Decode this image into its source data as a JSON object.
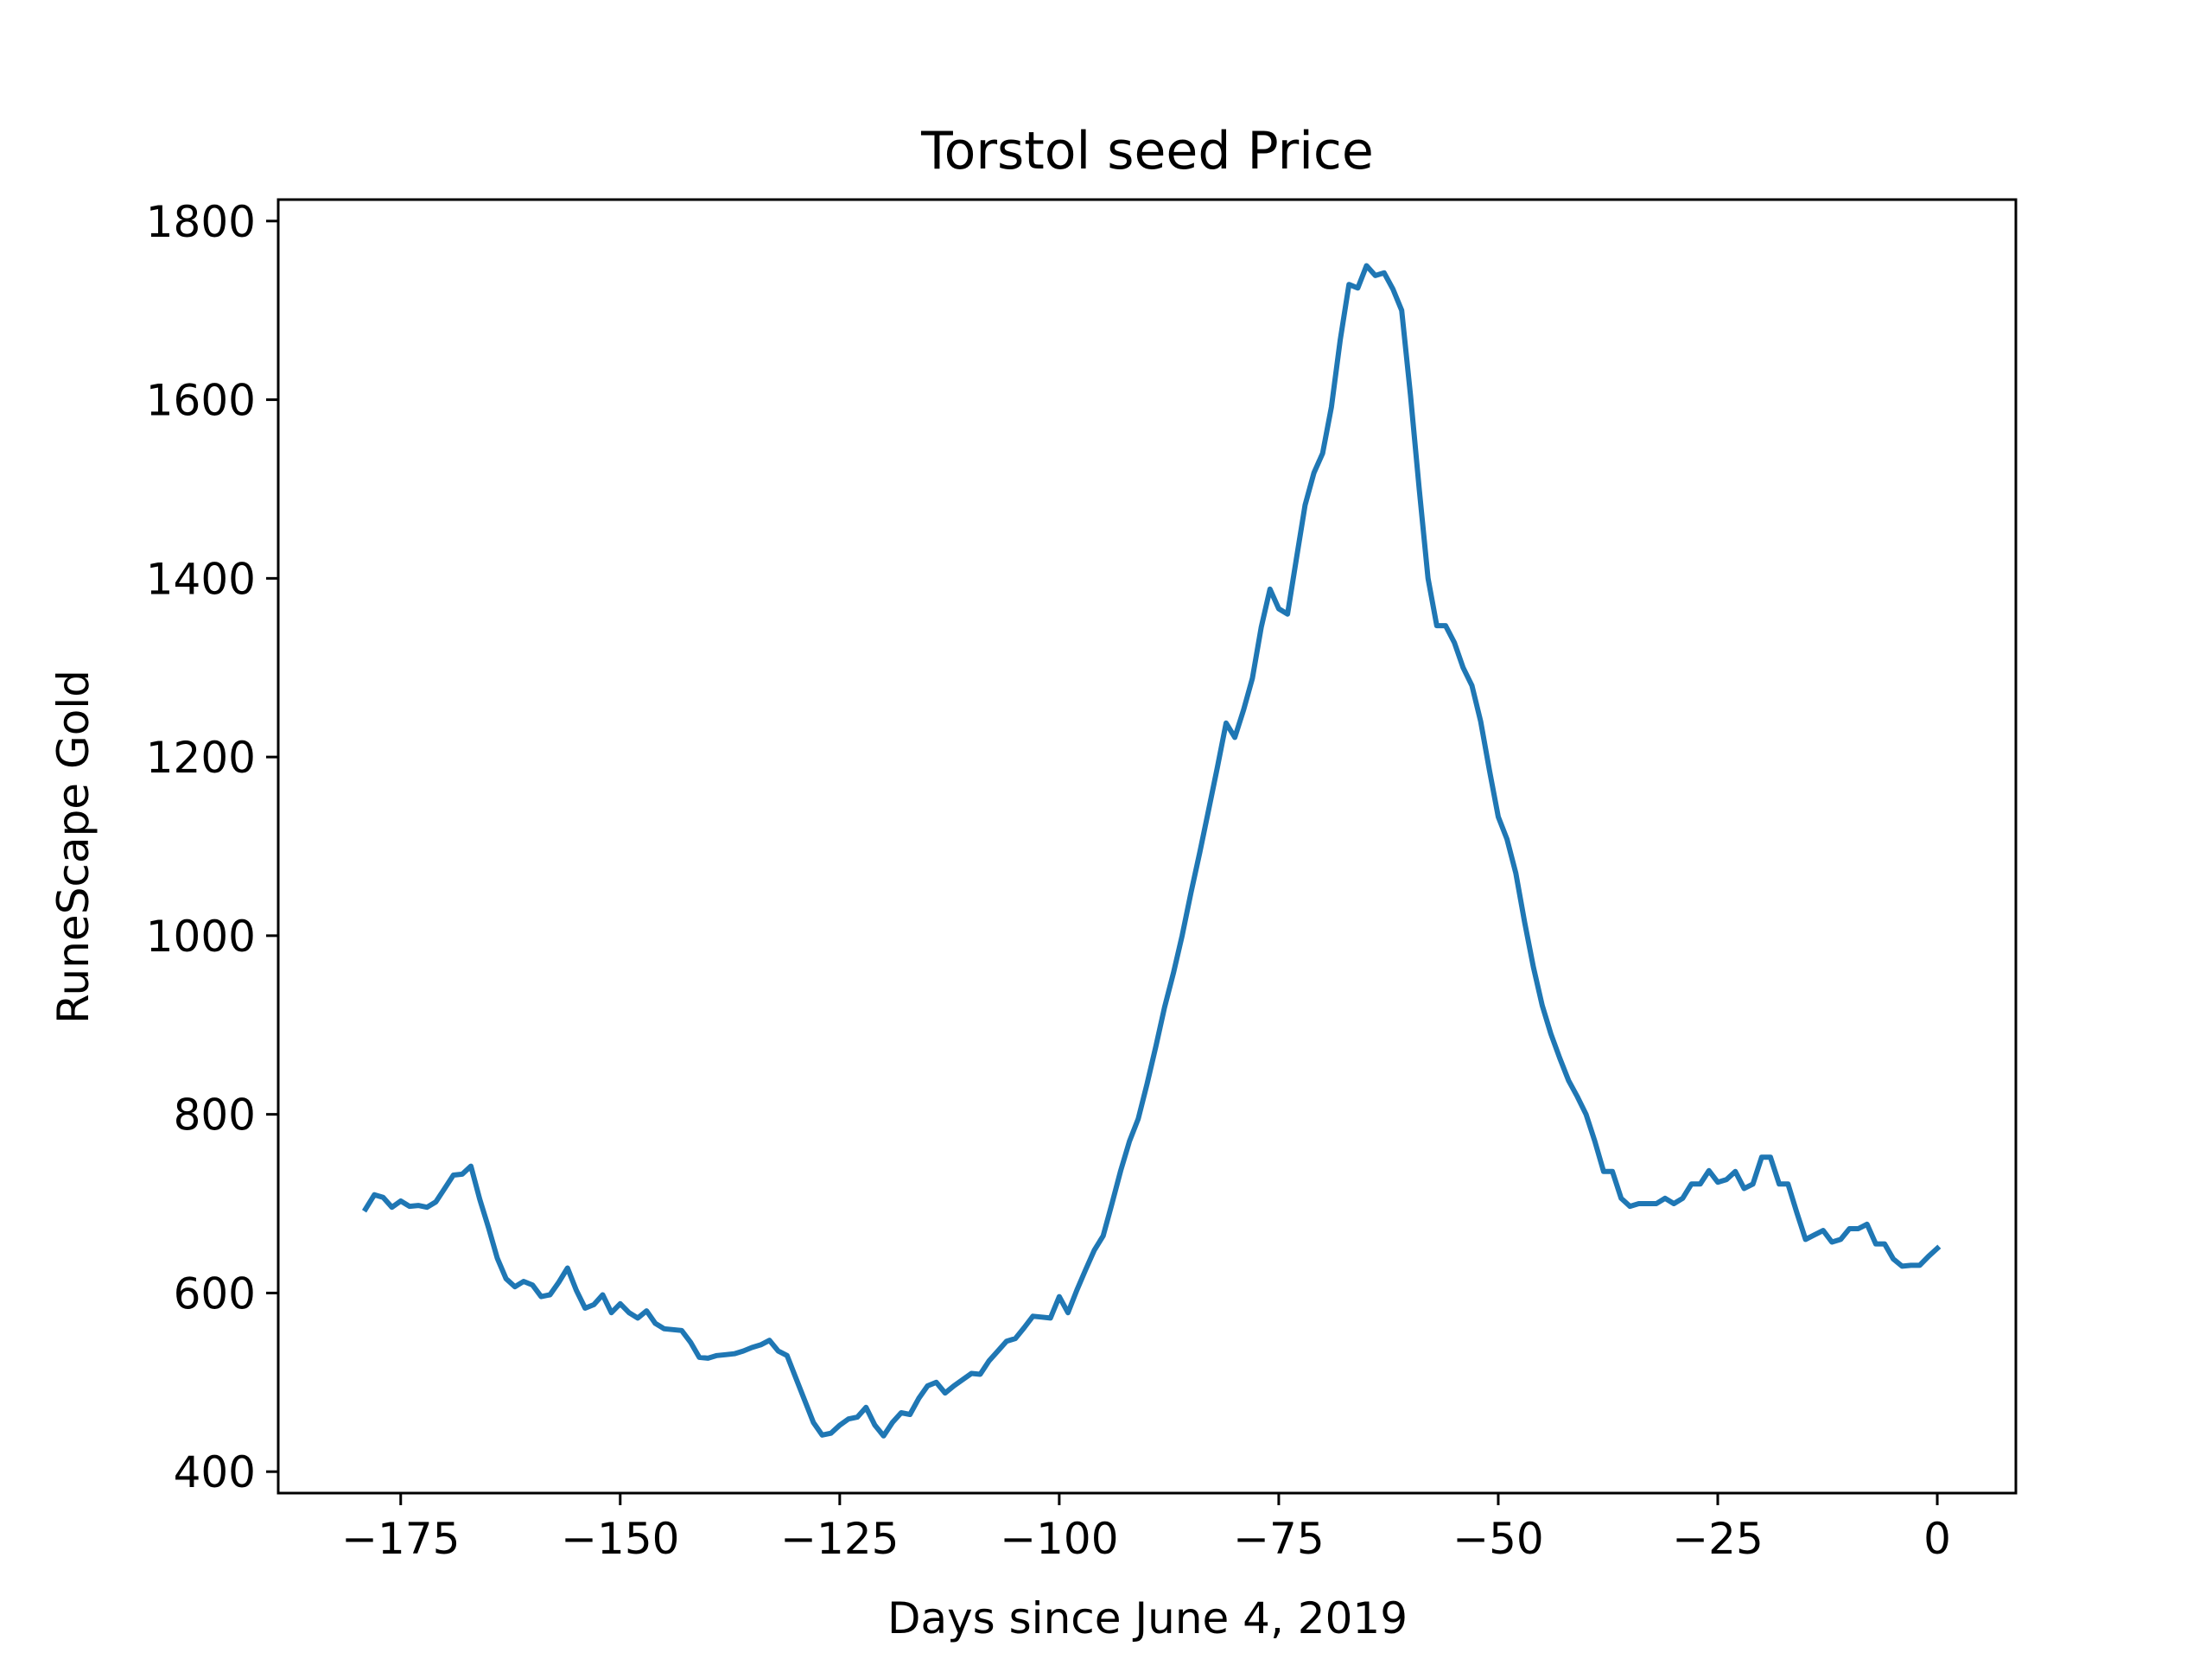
{
  "chart_data": {
    "type": "line",
    "title": "Torstol seed Price",
    "xlabel": "Days since June 4, 2019",
    "ylabel": "RuneScape Gold",
    "xlim": [
      -188.95,
      8.95
    ],
    "ylim": [
      376,
      1824
    ],
    "x_ticks": [
      -175,
      -150,
      -125,
      -100,
      -75,
      -50,
      -25,
      0
    ],
    "x_tick_labels": [
      "−175",
      "−150",
      "−125",
      "−100",
      "−75",
      "−50",
      "−25",
      "0"
    ],
    "y_ticks": [
      400,
      600,
      800,
      1000,
      1200,
      1400,
      1600,
      1800
    ],
    "y_tick_labels": [
      "400",
      "600",
      "800",
      "1000",
      "1200",
      "1400",
      "1600",
      "1800"
    ],
    "grid": false,
    "line_color": "#1f77b4",
    "series": [
      {
        "x": [
          -179,
          -178,
          -177,
          -176,
          -175,
          -174,
          -173,
          -172,
          -171,
          -170,
          -169,
          -168,
          -167,
          -166,
          -165,
          -164,
          -163,
          -162,
          -161,
          -160,
          -159,
          -158,
          -157,
          -156,
          -155,
          -154,
          -153,
          -152,
          -151,
          -150,
          -149,
          -148,
          -147,
          -146,
          -145,
          -144,
          -143,
          -142,
          -141,
          -140,
          -139,
          -138,
          -137,
          -136,
          -135,
          -134,
          -133,
          -132,
          -131,
          -130,
          -129,
          -128,
          -127,
          -126,
          -125,
          -124,
          -123,
          -122,
          -121,
          -120,
          -119,
          -118,
          -117,
          -116,
          -115,
          -114,
          -113,
          -112,
          -111,
          -110,
          -109,
          -108,
          -107,
          -106,
          -105,
          -104,
          -103,
          -102,
          -101,
          -100,
          -99,
          -98,
          -97,
          -96,
          -95,
          -94,
          -93,
          -92,
          -91,
          -90,
          -89,
          -88,
          -87,
          -86,
          -85,
          -84,
          -83,
          -82,
          -81,
          -80,
          -79,
          -78,
          -77,
          -76,
          -75,
          -74,
          -73,
          -72,
          -71,
          -70,
          -69,
          -68,
          -67,
          -66,
          -65,
          -64,
          -63,
          -62,
          -61,
          -60,
          -59,
          -58,
          -57,
          -56,
          -55,
          -54,
          -53,
          -52,
          -51,
          -50,
          -49,
          -48,
          -47,
          -46,
          -45,
          -44,
          -43,
          -42,
          -41,
          -40,
          -39,
          -38,
          -37,
          -36,
          -35,
          -34,
          -33,
          -32,
          -31,
          -30,
          -29,
          -28,
          -27,
          -26,
          -25,
          -24,
          -23,
          -22,
          -21,
          -20,
          -19,
          -18,
          -17,
          -16,
          -15,
          -14,
          -13,
          -12,
          -11,
          -10,
          -9,
          -8,
          -7,
          -6,
          -5,
          -4,
          -3,
          -2,
          -1,
          0
        ],
        "y": [
          694,
          710,
          707,
          696,
          703,
          697,
          698,
          696,
          702,
          717,
          732,
          733,
          742,
          705,
          673,
          639,
          616,
          607,
          613,
          609,
          596,
          598,
          612,
          628,
          603,
          583,
          587,
          598,
          578,
          588,
          578,
          572,
          580,
          566,
          560,
          559,
          558,
          545,
          528,
          527,
          530,
          531,
          532,
          535,
          539,
          542,
          547,
          535,
          530,
          505,
          480,
          455,
          441,
          443,
          452,
          459,
          461,
          472,
          452,
          440,
          455,
          466,
          464,
          482,
          496,
          500,
          488,
          496,
          503,
          510,
          509,
          524,
          535,
          546,
          549,
          561,
          574,
          573,
          572,
          596,
          578,
          603,
          626,
          648,
          664,
          700,
          737,
          770,
          795,
          834,
          876,
          920,
          958,
          1000,
          1048,
          1093,
          1140,
          1188,
          1238,
          1222,
          1253,
          1288,
          1345,
          1388,
          1366,
          1360,
          1421,
          1482,
          1518,
          1540,
          1592,
          1667,
          1729,
          1725,
          1750,
          1739,
          1742,
          1724,
          1700,
          1605,
          1500,
          1400,
          1347,
          1347,
          1328,
          1300,
          1280,
          1240,
          1185,
          1133,
          1108,
          1070,
          1015,
          965,
          922,
          890,
          863,
          838,
          820,
          800,
          770,
          736,
          736,
          706,
          697,
          700,
          700,
          700,
          706,
          700,
          706,
          722,
          722,
          737,
          724,
          727,
          736,
          717,
          722,
          752,
          752,
          722,
          722,
          690,
          660,
          665,
          670,
          657,
          660,
          672,
          672,
          677,
          655,
          655,
          638,
          630,
          631,
          631,
          641,
          650
        ]
      }
    ]
  }
}
